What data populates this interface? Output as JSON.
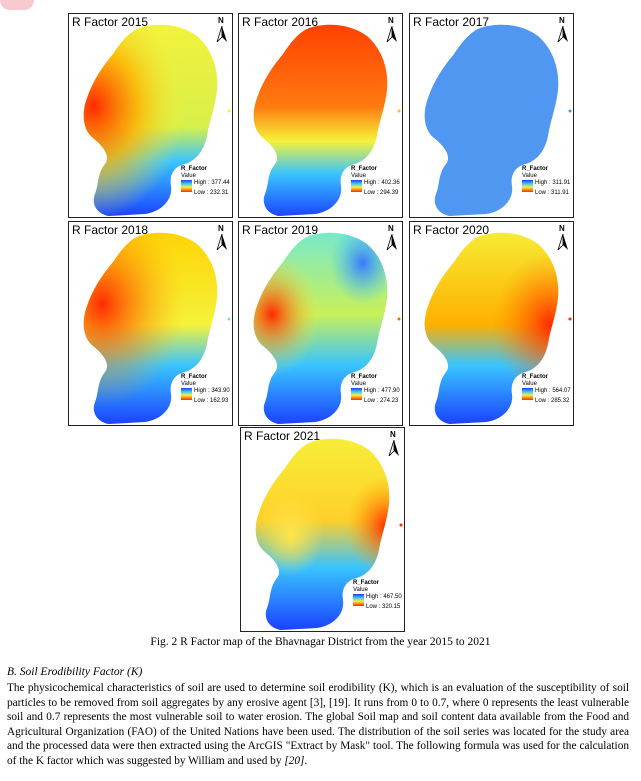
{
  "figure": {
    "panels": [
      {
        "title": "R Factor 2015",
        "north": "N",
        "legend_title": "R_Factor",
        "legend_subtitle": "Value",
        "high": "High : 377.44",
        "low": "Low : 232.31"
      },
      {
        "title": "R Factor 2016",
        "north": "N",
        "legend_title": "R_Factor",
        "legend_subtitle": "Value",
        "high": "High : 402.36",
        "low": "Low : 294.39"
      },
      {
        "title": "R Factor 2017",
        "north": "N",
        "legend_title": "R_Factor",
        "legend_subtitle": "Value",
        "high": "High : 311.91",
        "low": "Low : 311.91"
      },
      {
        "title": "R Factor 2018",
        "north": "N",
        "legend_title": "R_Factor",
        "legend_subtitle": "Value",
        "high": "High : 343.90",
        "low": "Low : 162.93"
      },
      {
        "title": "R Factor 2019",
        "north": "N",
        "legend_title": "R_Factor",
        "legend_subtitle": "Value",
        "high": "High : 477.90",
        "low": "Low : 274.23"
      },
      {
        "title": "R Factor 2020",
        "north": "N",
        "legend_title": "R_Factor",
        "legend_subtitle": "Value",
        "high": "High : 564.07",
        "low": "Low : 285.32"
      },
      {
        "title": "R Factor 2021",
        "north": "N",
        "legend_title": "R_Factor",
        "legend_subtitle": "Value",
        "high": "High : 467.50",
        "low": "Low : 320.15"
      }
    ],
    "caption": "Fig. 2 R Factor map of the Bhavnagar District from the year 2015 to 2021"
  },
  "section": {
    "heading": "B.  Soil Erodibility Factor (K)",
    "paragraph": "The physicochemical characteristics of soil are used to determine soil erodibility (K), which is an evaluation of the susceptibility of soil particles to be removed from soil aggregates by any erosive agent [3], [19]. It runs from 0 to 0.7, where 0 represents the least vulnerable soil and 0.7 represents the most vulnerable soil to water erosion. The global Soil map and soil content data available from the Food and Agricultural Organization (FAO) of the United Nations have been used. The distribution of the soil series was located for the study area and the processed data were then extracted using the ArcGIS \"Extract by Mask\" tool. The following formula was used for the calculation of the K factor which was suggested by William and used by ",
    "paragraph_ref": "[20]",
    "paragraph_end": "."
  },
  "colors": {
    "blue": "#1a3cff",
    "cyan": "#39c4ff",
    "yellow": "#f5f23a",
    "red": "#ff2a00",
    "flat_blue": "#4f97f0"
  }
}
